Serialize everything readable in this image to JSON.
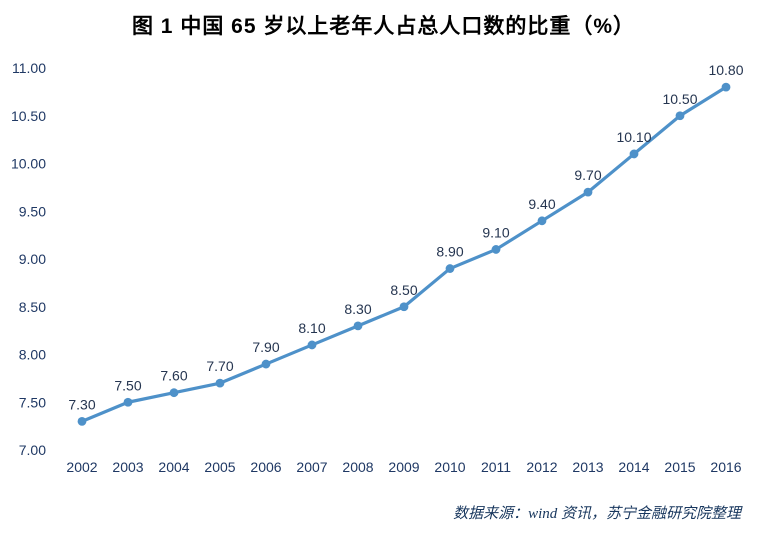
{
  "source_note": "数据来源：wind 资讯，苏宁金融研究院整理",
  "colors": {
    "line": "#4e91c9",
    "marker": "#4e91c9",
    "axis_text": "#1f3864",
    "data_label_text": "#253550",
    "source_text": "#17365d"
  },
  "chart_data": {
    "type": "line",
    "title": "图 1  中国 65 岁以上老年人占总人口数的比重（%）",
    "categories": [
      "2002",
      "2003",
      "2004",
      "2005",
      "2006",
      "2007",
      "2008",
      "2009",
      "2010",
      "2011",
      "2012",
      "2013",
      "2014",
      "2015",
      "2016"
    ],
    "series": [
      {
        "name": "中国65岁以上老年人占总人口数的比重(%)",
        "values": [
          7.3,
          7.5,
          7.6,
          7.7,
          7.9,
          8.1,
          8.3,
          8.5,
          8.9,
          9.1,
          9.4,
          9.7,
          10.1,
          10.5,
          10.8
        ]
      }
    ],
    "data_labels": [
      "7.30",
      "7.50",
      "7.60",
      "7.70",
      "7.90",
      "8.10",
      "8.30",
      "8.50",
      "8.90",
      "9.10",
      "9.40",
      "9.70",
      "10.10",
      "10.50",
      "10.80"
    ],
    "xlabel": "",
    "ylabel": "",
    "ylim": [
      7.0,
      11.0
    ],
    "ytick_step": 0.5,
    "ytick_labels": [
      "7.00",
      "7.50",
      "8.00",
      "8.50",
      "9.00",
      "9.50",
      "10.00",
      "10.50",
      "11.00"
    ],
    "grid": false,
    "legend": "none",
    "line_width": 3.2,
    "marker": "circle"
  }
}
